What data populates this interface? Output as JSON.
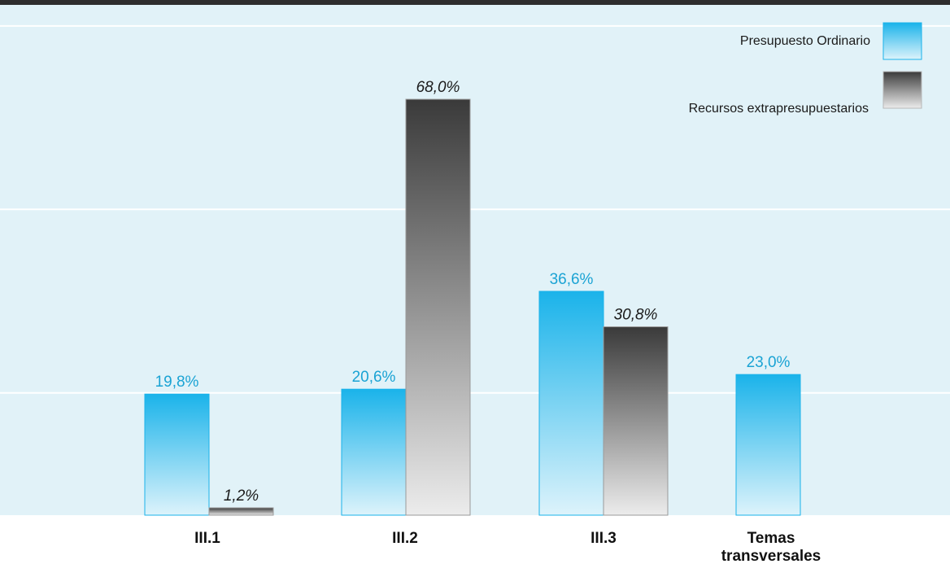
{
  "colors": {
    "plot_background": "#e1f2f8",
    "top_bar": "#2e2e2e",
    "gridline": "#ffffff",
    "ordinario_top": "#1ab3ea",
    "ordinario_bottom": "#ddf3fb",
    "ordinario_label": "#1aa3d4",
    "extra_top": "#3a3a3a",
    "extra_bottom": "#ececec",
    "extra_label": "#1a1a1a"
  },
  "chart_data": {
    "type": "bar",
    "categories": [
      "III.1",
      "III.2",
      "III.3",
      "Temas transversales"
    ],
    "category_lines": [
      [
        "III.1"
      ],
      [
        "III.2"
      ],
      [
        "III.3"
      ],
      [
        "Temas",
        "transversales"
      ]
    ],
    "series": [
      {
        "name": "Presupuesto Ordinario",
        "values": [
          19.8,
          20.6,
          36.6,
          23.0
        ],
        "labels": [
          "19,8%",
          "20,6%",
          "36,6%",
          "23,0%"
        ],
        "label_style": "normal"
      },
      {
        "name": "Recursos extrapresupuestarios",
        "values": [
          1.2,
          68.0,
          30.8,
          null
        ],
        "labels": [
          "1,2%",
          "68,0%",
          "30,8%",
          null
        ],
        "label_style": "italic"
      }
    ],
    "ylim": [
      0,
      80
    ],
    "grid": true,
    "y_tick_values": [
      20,
      50,
      80
    ],
    "legend_position": "top-right",
    "title": "",
    "xlabel": "",
    "ylabel": ""
  }
}
